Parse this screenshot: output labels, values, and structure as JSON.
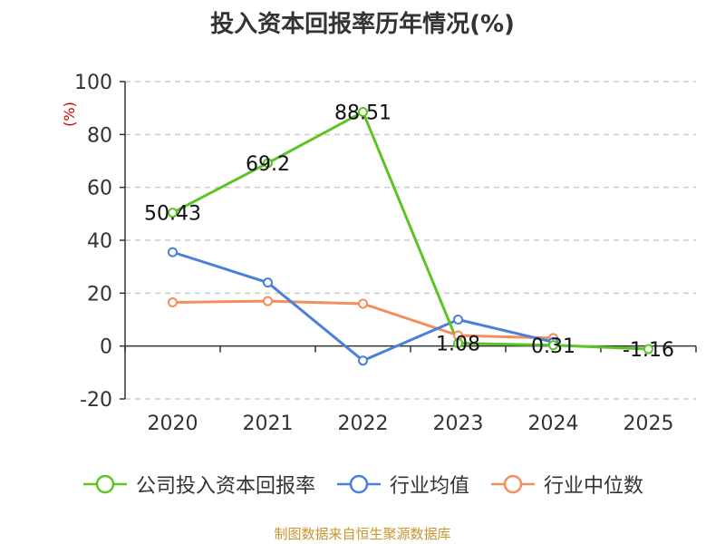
{
  "chart_data": {
    "type": "line",
    "title": "投入资本回报率历年情况(%)",
    "ylabel": "(%)",
    "categories": [
      "2020",
      "2021",
      "2022",
      "2023",
      "2024",
      "2025"
    ],
    "ylim": [
      -20,
      100
    ],
    "yticks": [
      -20,
      0,
      20,
      40,
      60,
      80,
      100
    ],
    "grid": true,
    "legend_position": "bottom",
    "series": [
      {
        "name": "公司投入资本回报率",
        "color": "#5cc424",
        "values": [
          50.43,
          69.2,
          88.51,
          1.08,
          0.31,
          -1.16
        ],
        "labels": [
          "50.43",
          "69.2",
          "88.51",
          "1.08",
          "0.31",
          "-1.16"
        ]
      },
      {
        "name": "行业均值",
        "color": "#4a7fdb",
        "values": [
          35.5,
          24,
          -5.5,
          10,
          1.5,
          null
        ]
      },
      {
        "name": "行业中位数",
        "color": "#f58d5a",
        "values": [
          16.5,
          17,
          16,
          4,
          3,
          null
        ]
      }
    ]
  },
  "source": "制图数据来自恒生聚源数据库"
}
